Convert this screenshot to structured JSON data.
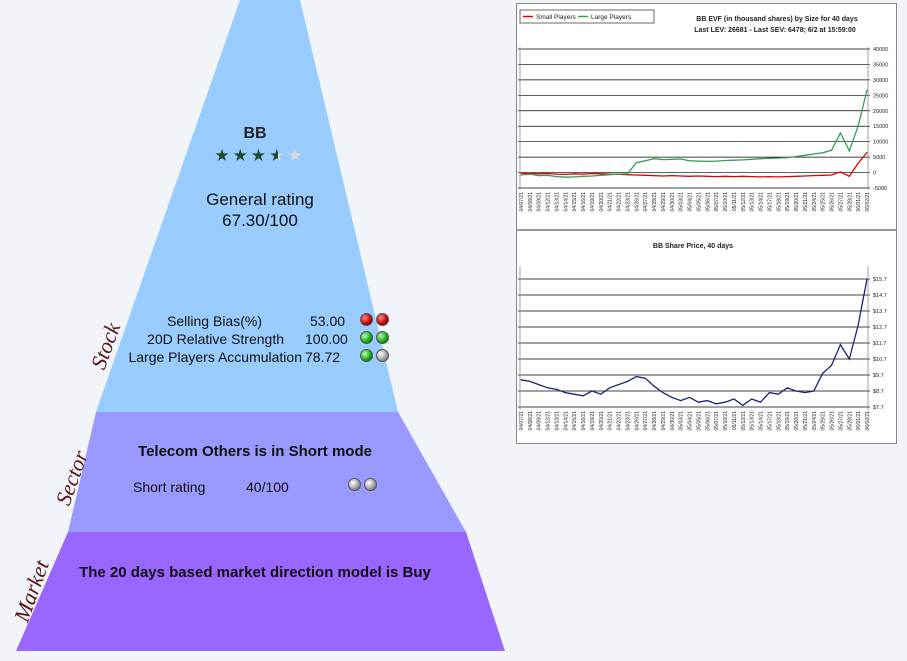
{
  "stock": {
    "ticker": "BB",
    "stars": 3.5,
    "general_rating_label": "General rating",
    "general_rating_value": "67.30/100",
    "metrics": [
      {
        "label": "Selling Bias(%)",
        "value": "53.00",
        "dots": [
          "red",
          "red"
        ]
      },
      {
        "label": "20D Relative Strength",
        "value": "100.00",
        "dots": [
          "green",
          "green"
        ]
      },
      {
        "label": "Large Players Accumulation",
        "value": "78.72",
        "dots": [
          "green",
          "gray"
        ]
      }
    ]
  },
  "sector": {
    "title": "Telecom Others is in Short mode",
    "short_label": "Short rating",
    "short_value": "40/100",
    "dots": [
      "gray",
      "gray"
    ]
  },
  "market": {
    "title": "The 20 days based market direction model is Buy"
  },
  "side_labels": {
    "stock": "Stock",
    "sector": "Sector",
    "market": "Market"
  },
  "colors": {
    "stock_band": "#99ccff",
    "sector_band": "#9999ff",
    "market_band": "#9966ff",
    "star": "#1f4a2e"
  },
  "chart_data": [
    {
      "type": "line",
      "title": "BB EVF (in thousand shares) by Size for 40 days",
      "subtitle": "Last LEV: 26681 - Last SEV: 6478; 6/2 at 15:59:00",
      "ylim": [
        -5000,
        40000
      ],
      "yticks": [
        -5000,
        0,
        5000,
        10000,
        15000,
        20000,
        25000,
        30000,
        35000,
        40000
      ],
      "x": [
        "04/07/21",
        "04/08/21",
        "04/09/21",
        "04/12/21",
        "04/13/21",
        "04/14/21",
        "04/15/21",
        "04/16/21",
        "04/19/21",
        "04/20/21",
        "04/21/21",
        "04/22/21",
        "04/23/21",
        "04/26/21",
        "04/27/21",
        "04/28/21",
        "04/29/21",
        "04/30/21",
        "05/03/21",
        "05/04/21",
        "05/05/21",
        "05/06/21",
        "05/07/21",
        "05/10/21",
        "05/11/21",
        "05/12/21",
        "05/13/21",
        "05/14/21",
        "05/17/21",
        "05/18/21",
        "05/19/21",
        "05/20/21",
        "05/21/21",
        "05/24/21",
        "05/25/21",
        "05/26/21",
        "05/27/21",
        "05/28/21",
        "06/01/21",
        "06/02/21"
      ],
      "series": [
        {
          "name": "Small Players",
          "color": "#e00000",
          "values": [
            -200,
            -300,
            -400,
            -300,
            -500,
            -600,
            -400,
            -500,
            -300,
            -400,
            -500,
            -600,
            -700,
            -800,
            -900,
            -1000,
            -1100,
            -1000,
            -1100,
            -1200,
            -1100,
            -1200,
            -1300,
            -1200,
            -1300,
            -1200,
            -1300,
            -1400,
            -1300,
            -1400,
            -1300,
            -1200,
            -1100,
            -1000,
            -900,
            -800,
            200,
            -1200,
            3000,
            6478
          ]
        },
        {
          "name": "Large Players",
          "color": "#3a9a5a",
          "values": [
            -800,
            -500,
            -1000,
            -900,
            -1300,
            -1500,
            -1400,
            -1200,
            -1100,
            -900,
            -700,
            -500,
            -400,
            3200,
            3800,
            4500,
            4200,
            4300,
            4400,
            3800,
            3700,
            3600,
            3700,
            3900,
            4000,
            4100,
            4300,
            4500,
            4600,
            4700,
            4800,
            5200,
            5600,
            6000,
            6400,
            7200,
            12800,
            7000,
            15000,
            26681
          ]
        }
      ]
    },
    {
      "type": "line",
      "title": "BB Share Price, 40 days",
      "ylim": [
        7.7,
        15.7
      ],
      "yticks": [
        "$7.7",
        "$8.7",
        "$9.7",
        "$10.7",
        "$11.7",
        "$12.7",
        "$13.7",
        "$14.7",
        "$15.7"
      ],
      "x": [
        "04/07/21",
        "04/08/21",
        "04/09/21",
        "04/12/21",
        "04/13/21",
        "04/14/21",
        "04/15/21",
        "04/16/21",
        "04/19/21",
        "04/20/21",
        "04/21/21",
        "04/22/21",
        "04/23/21",
        "04/26/21",
        "04/27/21",
        "04/28/21",
        "04/29/21",
        "04/30/21",
        "05/03/21",
        "05/04/21",
        "05/05/21",
        "05/06/21",
        "05/07/21",
        "05/10/21",
        "05/11/21",
        "05/12/21",
        "05/13/21",
        "05/14/21",
        "05/17/21",
        "05/18/21",
        "05/19/21",
        "05/20/21",
        "05/21/21",
        "05/24/21",
        "05/25/21",
        "05/26/21",
        "05/27/21",
        "05/28/21",
        "06/01/21",
        "06/02/21"
      ],
      "series": [
        {
          "name": "Price",
          "color": "#1a237e",
          "values": [
            9.4,
            9.3,
            9.1,
            8.9,
            8.8,
            8.6,
            8.5,
            8.4,
            8.7,
            8.5,
            8.9,
            9.1,
            9.3,
            9.6,
            9.5,
            9.0,
            8.6,
            8.3,
            8.1,
            8.3,
            8.0,
            8.1,
            7.9,
            8.0,
            8.2,
            7.8,
            8.2,
            8.0,
            8.6,
            8.5,
            8.9,
            8.7,
            8.6,
            8.7,
            9.8,
            10.3,
            11.6,
            10.7,
            12.8,
            15.7
          ]
        }
      ]
    }
  ]
}
